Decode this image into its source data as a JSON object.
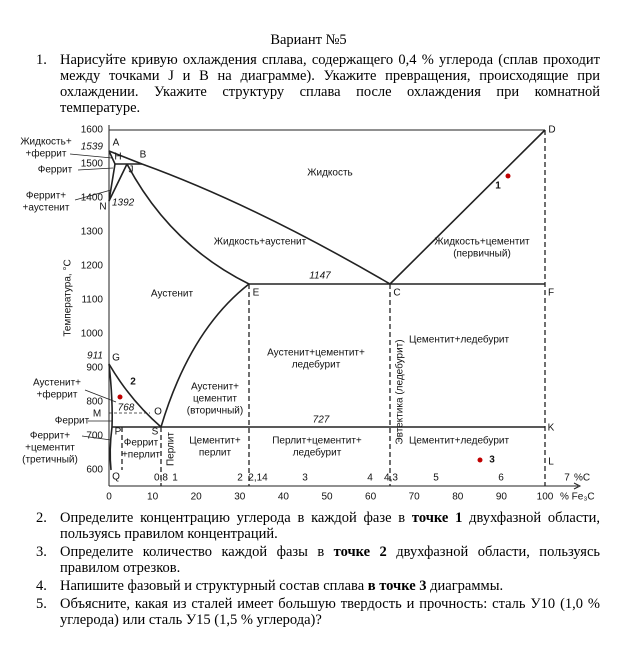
{
  "header": {
    "title": "Вариант №5"
  },
  "questions": [
    {
      "number": "1.",
      "parts": [
        "Нарисуйте кривую охлаждения сплава, содержащего 0,4 % углерода (сплав проходит между точками J и В на диаграмме). Укажите превращения, происходящие при охлаждении. Укажите структуру сплава после охлаждения при комнатной температуре."
      ]
    },
    {
      "number": "2.",
      "parts": [
        "Определите концентрацию углерода в каждой фазе в ",
        "точке 1",
        " двухфазной области, пользуясь правилом концентраций."
      ]
    },
    {
      "number": "3.",
      "parts": [
        "Определите количество каждой фазы в ",
        "точке 2",
        " двухфазной области, пользуясь правилом отрезков."
      ]
    },
    {
      "number": "4.",
      "parts": [
        "Напишите фазовый и структурный состав сплава ",
        "в точке 3",
        " диаграммы."
      ]
    },
    {
      "number": "5.",
      "parts": [
        "Объясните, какая из сталей имеет большую твердость и прочность: сталь У10 (1,0 % углерода) или сталь У15 (1,5 % углерода)?"
      ]
    }
  ],
  "diagram": {
    "y_title": "Температура, °С",
    "y_ticks": [
      "1600",
      "1500",
      "1400",
      "1300",
      "1200",
      "1100",
      "1000",
      "900",
      "800",
      "700",
      "600"
    ],
    "x_ticks": [
      "0",
      "10",
      "20",
      "30",
      "40",
      "50",
      "60",
      "70",
      "80",
      "90",
      "100"
    ],
    "x_unit": "% Fe₃C",
    "c_ticks": [
      "0,8",
      "1",
      "2",
      "2,14",
      "3",
      "4",
      "4,3",
      "5",
      "6",
      "7",
      "%C"
    ],
    "temperatures": [
      "1539",
      "1392",
      "1147",
      "911",
      "768",
      "727"
    ],
    "points": [
      "A",
      "B",
      "H",
      "J",
      "N",
      "D",
      "E",
      "C",
      "F",
      "G",
      "S",
      "P",
      "O",
      "M",
      "K",
      "Q",
      "L"
    ],
    "side_labels": [
      [
        "Жидкость+",
        "+феррит"
      ],
      [
        "Феррит"
      ],
      [
        "Феррит+",
        "+аустенит"
      ],
      [
        "Аустенит+",
        "+феррит"
      ],
      [
        "Феррит"
      ],
      [
        "Феррит+",
        "+цементит",
        "(третичный)"
      ]
    ],
    "regions": [
      [
        "Жидкость"
      ],
      [
        "Жидкость+аустенит"
      ],
      [
        "Жидкость+цементит",
        "(первичный)"
      ],
      [
        "Аустенит"
      ],
      [
        "Аустенит+цементит+",
        "ледебурит"
      ],
      [
        "Цементит+ледебурит"
      ],
      [
        "Аустенит+",
        "цементит",
        "(вторичный)"
      ],
      [
        "Цементит+",
        "перлит"
      ],
      [
        "Перлит+цементит+",
        "ледебурит"
      ],
      [
        "Цементит+ледебурит"
      ],
      [
        "Феррит",
        "+перлит"
      ]
    ],
    "vertical_labels": [
      "Перлит",
      "Эвтектика (ледебурит)"
    ],
    "markers": [
      "1",
      "2",
      "3"
    ]
  }
}
